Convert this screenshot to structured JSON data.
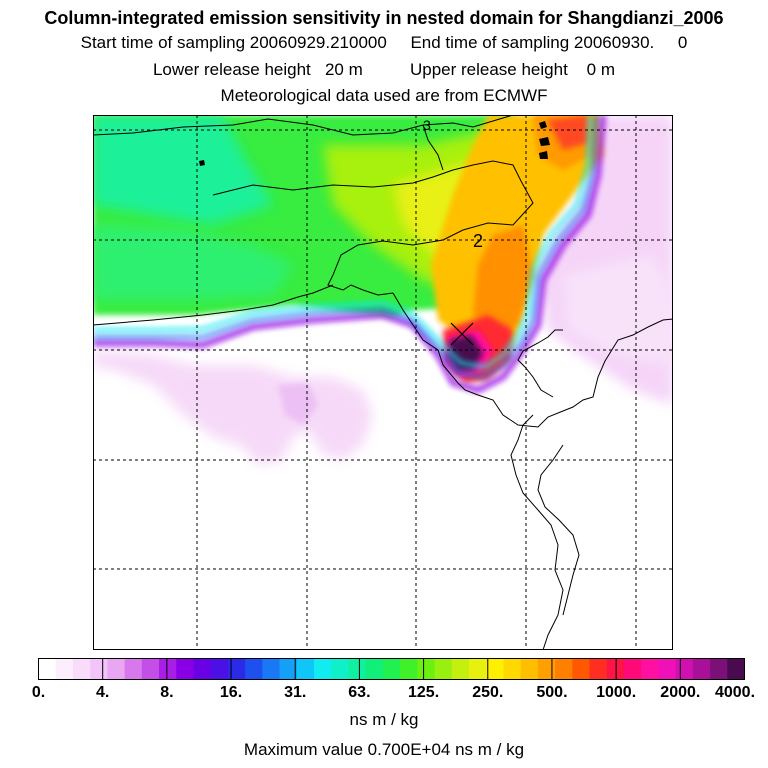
{
  "header": {
    "title": "Column-integrated emission sensitivity in nested domain for Shangdianzi_2006",
    "sampling_line": "Start time of sampling 20060929.210000     End time of sampling 20060930.     0",
    "release_line": "Lower release height   20 m          Upper release height    0 m",
    "met_line": "Meteorological data used are from ECMWF"
  },
  "map": {
    "contour_labels": [
      "2",
      "3"
    ],
    "release_marker": "station-cross"
  },
  "legend": {
    "tick_labels": [
      "0.",
      "4.",
      "8.",
      "16.",
      "31.",
      "63.",
      "125.",
      "250.",
      "500.",
      "1000.",
      "2000.",
      "4000."
    ],
    "colors": [
      "#ffffff",
      "#fdeefd",
      "#f9dcfa",
      "#f3c4f7",
      "#e9a6f2",
      "#d878ec",
      "#c44ee8",
      "#a91ee6",
      "#8a00e6",
      "#6a00e6",
      "#4a10e6",
      "#2a2ae8",
      "#1e50f0",
      "#1a78f5",
      "#14a0f8",
      "#10c6f8",
      "#10ecf0",
      "#10f0c8",
      "#10f0a0",
      "#10f078",
      "#20f050",
      "#40f028",
      "#6cf010",
      "#98f010",
      "#c4f010",
      "#e8f010",
      "#fff000",
      "#ffd800",
      "#ffbe00",
      "#ffa000",
      "#ff8000",
      "#ff5800",
      "#ff2e20",
      "#ff1448",
      "#ff0a78",
      "#ff10a0",
      "#f010b8",
      "#d010b0",
      "#a8109a",
      "#7a1078",
      "#4a0a50"
    ],
    "units": "ns m / kg",
    "max_value": "Maximum value  0.700E+04 ns m / kg"
  }
}
